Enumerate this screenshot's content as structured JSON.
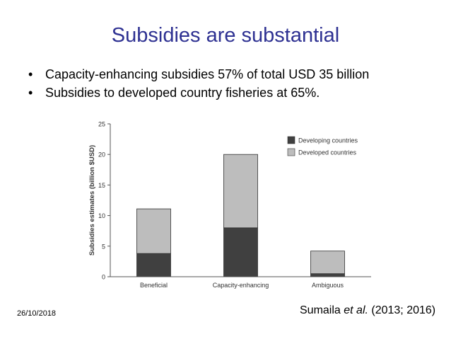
{
  "slide": {
    "title": "Subsidies are substantial",
    "bullets": [
      "Capacity-enhancing subsidies 57% of total USD 35 billion",
      "Subsidies to developed country fisheries at 65%."
    ],
    "date": "26/10/2018",
    "citation": {
      "authors": "Sumaila ",
      "etal": "et al.",
      "years": " (2013; 2016)"
    },
    "bullet_glyph": "•"
  },
  "chart_data": {
    "type": "bar",
    "stacked": true,
    "categories": [
      "Beneficial",
      "Capacity-enhancing",
      "Ambiguous"
    ],
    "series": [
      {
        "name": "Developing countries",
        "values": [
          3.8,
          8.0,
          0.5
        ],
        "color": "#404040"
      },
      {
        "name": "Developed countries",
        "values": [
          7.3,
          12.0,
          3.7
        ],
        "color": "#bdbdbd"
      }
    ],
    "ylabel": "Subsidies estimates (billion $USD)",
    "ylim": [
      0,
      25
    ],
    "yticks": [
      0,
      5,
      10,
      15,
      20,
      25
    ],
    "grid": false,
    "legend_position": "top-right"
  }
}
